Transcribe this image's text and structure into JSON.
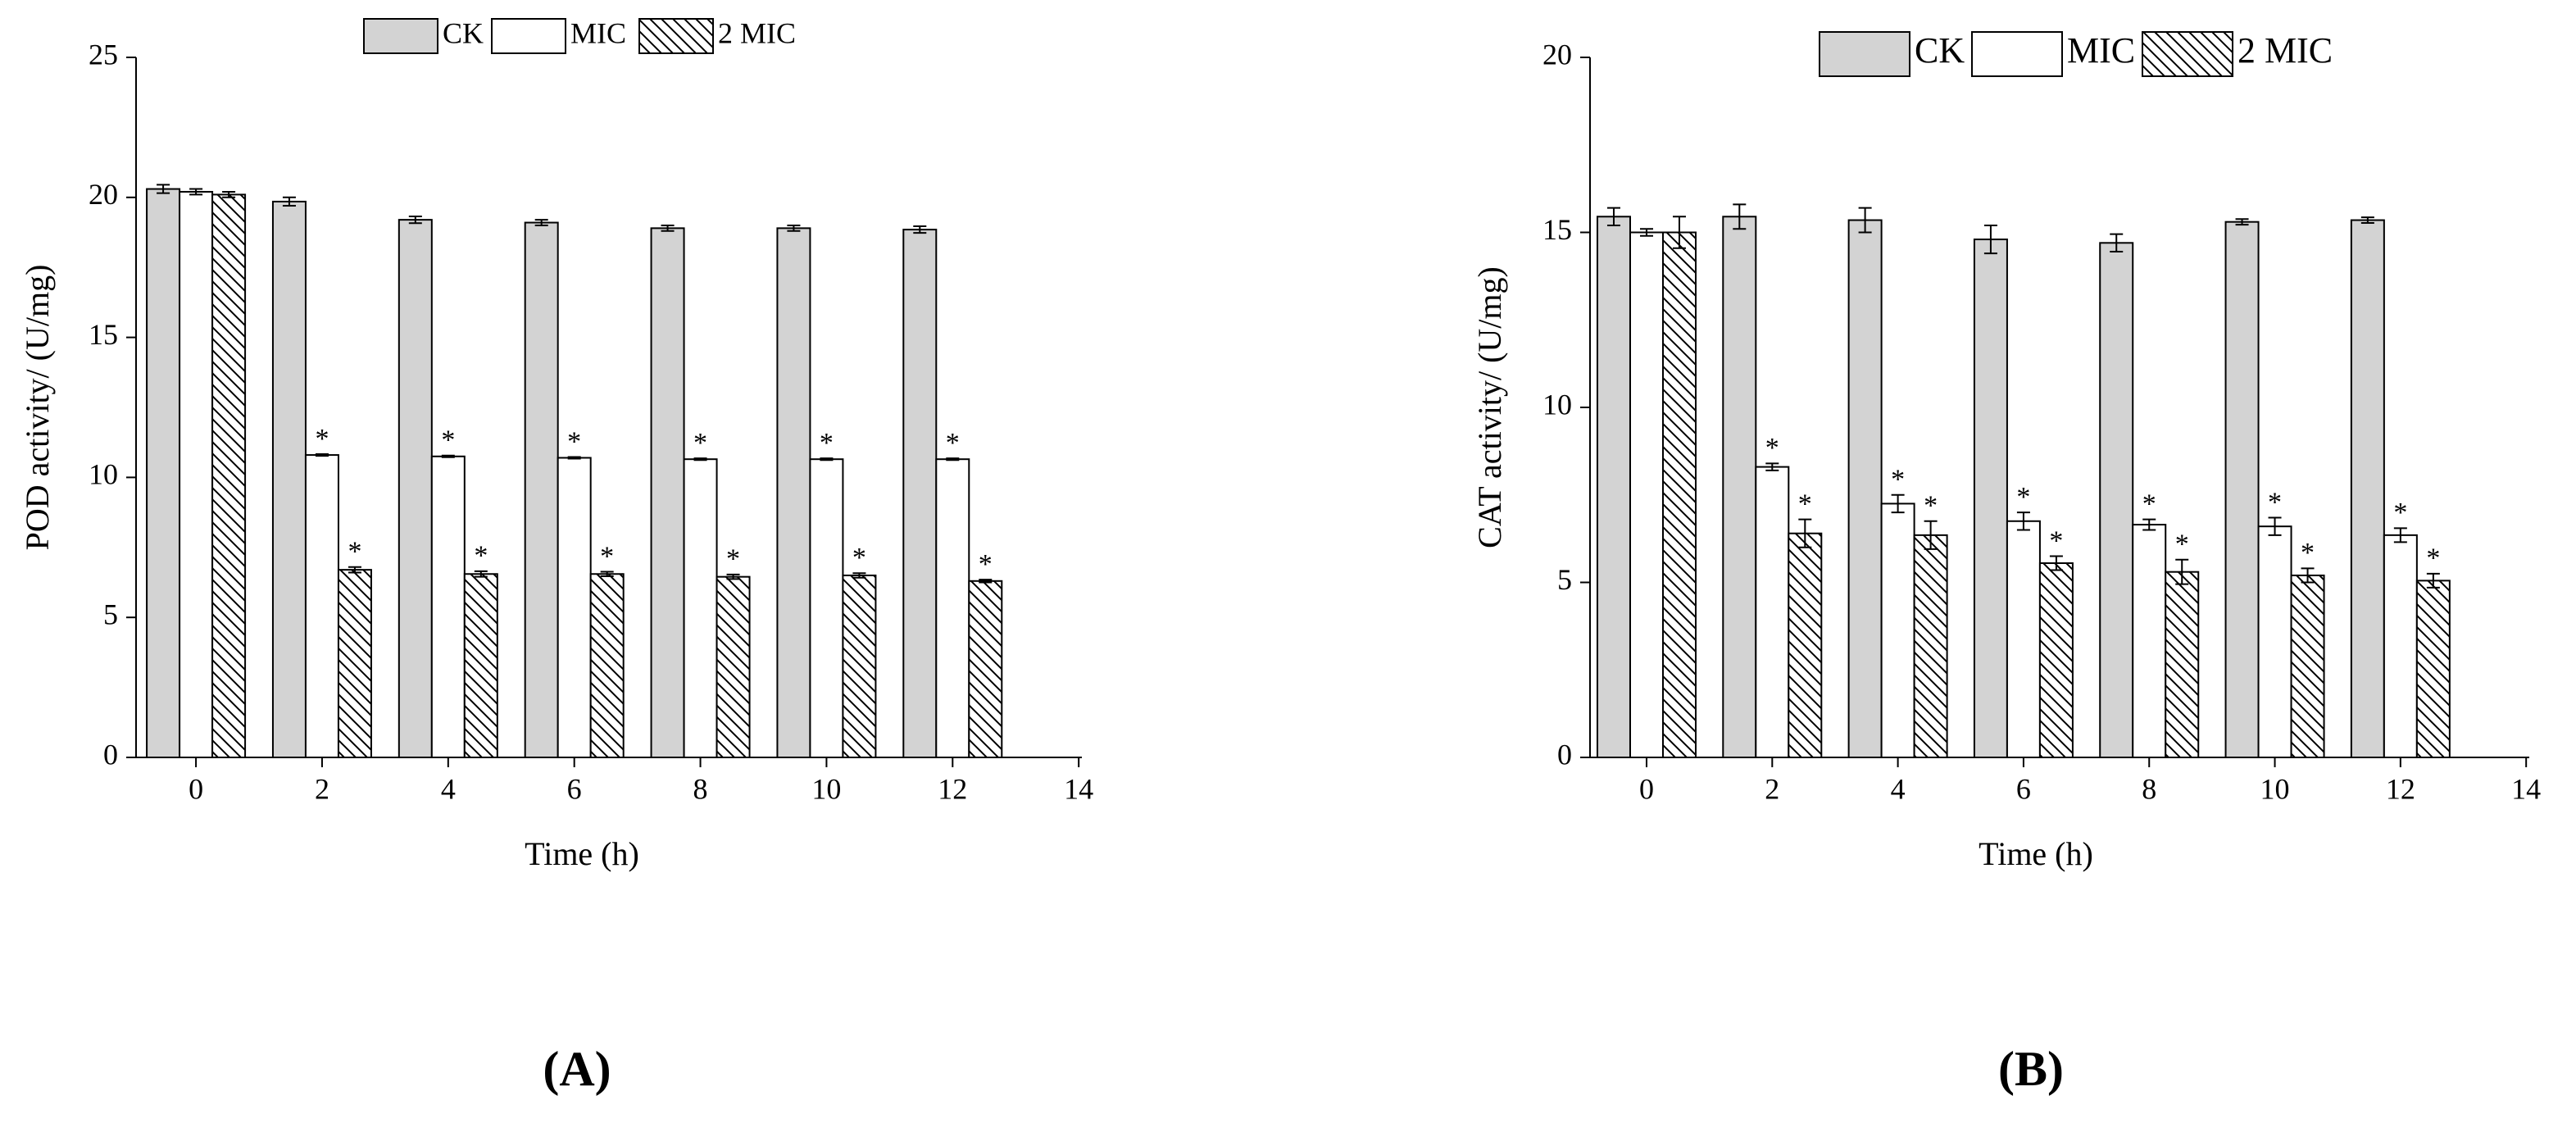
{
  "chart_data": [
    {
      "type": "bar",
      "panel_label": "(A)",
      "x_label": "Time (h)",
      "y_label": "POD activity/ (U/mg)",
      "x": [
        0,
        2,
        4,
        6,
        8,
        10,
        12
      ],
      "xlim": [
        -0.95,
        14.05
      ],
      "xticks": [
        0,
        2,
        4,
        6,
        8,
        10,
        12,
        14
      ],
      "ylim": [
        0,
        25
      ],
      "yticks": [
        0,
        5,
        10,
        15,
        20,
        25
      ],
      "grid": false,
      "series": [
        {
          "name": "CK",
          "color": "#d3d3d3",
          "hatch": false,
          "values": [
            20.3,
            19.85,
            19.2,
            19.1,
            18.9,
            18.9,
            18.85
          ],
          "errors": [
            0.15,
            0.15,
            0.12,
            0.1,
            0.1,
            0.1,
            0.12
          ]
        },
        {
          "name": "MIC",
          "color": "#ffffff",
          "hatch": false,
          "values": [
            20.2,
            10.8,
            10.75,
            10.7,
            10.65,
            10.65,
            10.65
          ],
          "errors": [
            0.1,
            0.03,
            0.03,
            0.03,
            0.03,
            0.03,
            0.03
          ],
          "markers": [
            null,
            "*",
            "*",
            "*",
            "*",
            "*",
            "*"
          ]
        },
        {
          "name": "2 MIC",
          "color": "#ffffff",
          "hatch": true,
          "values": [
            20.1,
            6.7,
            6.55,
            6.55,
            6.45,
            6.5,
            6.3
          ],
          "errors": [
            0.1,
            0.1,
            0.1,
            0.08,
            0.08,
            0.08,
            0.05
          ],
          "markers": [
            null,
            "*",
            "*",
            "*",
            "*",
            "*",
            "*"
          ]
        }
      ]
    },
    {
      "type": "bar",
      "panel_label": "(B)",
      "x_label": "Time (h)",
      "y_label": "CAT activity/ (U/mg)",
      "x": [
        0,
        2,
        4,
        6,
        8,
        10,
        12
      ],
      "xlim": [
        -0.9,
        14.05
      ],
      "xticks": [
        0,
        2,
        4,
        6,
        8,
        10,
        12,
        14
      ],
      "ylim": [
        0,
        20
      ],
      "yticks": [
        0,
        5,
        10,
        15,
        20
      ],
      "grid": false,
      "series": [
        {
          "name": "CK",
          "color": "#d3d3d3",
          "hatch": false,
          "values": [
            15.45,
            15.45,
            15.35,
            14.8,
            14.7,
            15.3,
            15.35
          ],
          "errors": [
            0.25,
            0.35,
            0.35,
            0.4,
            0.25,
            0.08,
            0.08
          ]
        },
        {
          "name": "MIC",
          "color": "#ffffff",
          "hatch": false,
          "values": [
            15.0,
            8.3,
            7.25,
            6.75,
            6.65,
            6.6,
            6.35
          ],
          "errors": [
            0.1,
            0.1,
            0.25,
            0.25,
            0.15,
            0.25,
            0.2
          ],
          "markers": [
            null,
            "*",
            "*",
            "*",
            "*",
            "*",
            "*"
          ]
        },
        {
          "name": "2 MIC",
          "color": "#ffffff",
          "hatch": true,
          "values": [
            15.0,
            6.4,
            6.35,
            5.55,
            5.3,
            5.2,
            5.05
          ],
          "errors": [
            0.45,
            0.4,
            0.4,
            0.2,
            0.35,
            0.2,
            0.2
          ],
          "markers": [
            null,
            "*",
            "*",
            "*",
            "*",
            "*",
            "*"
          ]
        }
      ]
    }
  ]
}
